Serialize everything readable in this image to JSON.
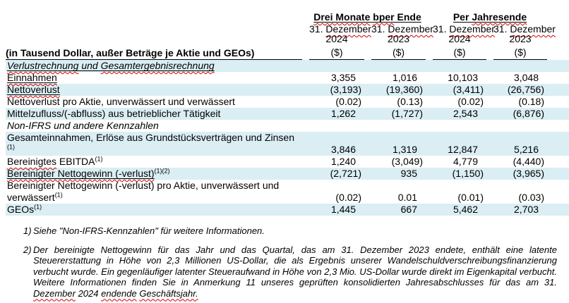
{
  "colors": {
    "row_highlight": "#DAEEF3",
    "rule": "#000000",
    "spellcheck_red": "#D40000",
    "text": "#000000"
  },
  "header": {
    "label": "(in Tausend Dollar, außer Beträge je Aktie und GEOs)",
    "groups": [
      {
        "id": "drei-monate",
        "parts": [
          {
            "t": "Drei Monate",
            "sp": true
          },
          {
            "t": " "
          },
          {
            "t": "bper",
            "sp": true
          },
          {
            "t": " Ende"
          }
        ]
      },
      {
        "id": "per-jahresende",
        "parts": [
          {
            "t": "Per "
          },
          {
            "t": "Jahresende",
            "sp": true
          }
        ]
      }
    ],
    "columns": [
      {
        "date_parts": [
          {
            "t": "31. "
          },
          {
            "t": "Dezember",
            "sp": true
          }
        ],
        "year": "2024",
        "unit": "($)"
      },
      {
        "date_parts": [
          {
            "t": "31. "
          },
          {
            "t": "Dezember",
            "sp": true
          }
        ],
        "year": "2023",
        "unit": "($)"
      },
      {
        "date_parts": [
          {
            "t": "31. "
          },
          {
            "t": "Dezember",
            "sp": true
          }
        ],
        "year": "2024",
        "unit": "($)"
      },
      {
        "date_parts": [
          {
            "t": "31. "
          },
          {
            "t": "Dezember",
            "sp": true
          }
        ],
        "year": "2023",
        "unit": "($)"
      }
    ]
  },
  "rows": [
    {
      "kind": "section",
      "bg": "blue",
      "italic": true,
      "parts": [
        {
          "t": "Verlustrechnung",
          "u": true,
          "sp": true
        },
        {
          "t": " und ",
          "u": true
        },
        {
          "t": "Gesamtergebnisrechnung",
          "u": true,
          "sp": true
        }
      ],
      "values": []
    },
    {
      "kind": "data",
      "bg": "white",
      "parts": [
        {
          "t": "Einnahmen",
          "u": true,
          "sp": true
        }
      ],
      "values": [
        "3,355",
        "1,016",
        "10,103",
        "3,048"
      ]
    },
    {
      "kind": "data",
      "bg": "blue",
      "parts": [
        {
          "t": "Nettoverlust",
          "u": true,
          "sp": true
        }
      ],
      "values": [
        "(3,193)",
        "(19,360)",
        "(3,411)",
        "(26,756)"
      ]
    },
    {
      "kind": "data",
      "bg": "white",
      "parts": [
        {
          "t": "Nettoverlust pro Aktie, unverwässert und verwässert"
        }
      ],
      "values": [
        "(0.02)",
        "(0.13)",
        "(0.02)",
        "(0.18)"
      ]
    },
    {
      "kind": "data",
      "bg": "blue",
      "parts": [
        {
          "t": "Mittelzufluss/(-abfluss) aus betrieblicher Tätigkeit"
        }
      ],
      "values": [
        "1,262",
        "(1,727)",
        "2,543",
        "(6,876)"
      ]
    },
    {
      "kind": "section",
      "bg": "white",
      "italic": true,
      "parts": [
        {
          "t": "Non-IFRS und andere Kennzahlen"
        }
      ],
      "values": []
    },
    {
      "kind": "data",
      "bg": "blue",
      "parts": [
        {
          "t": "Gesamteinnahmen, Erlöse aus Grundstücksverträgen und Zinsen "
        },
        {
          "t": "(1)",
          "sup": true
        }
      ],
      "values": [
        "3,846",
        "1,319",
        "12,847",
        "5,216"
      ]
    },
    {
      "kind": "data",
      "bg": "white",
      "parts": [
        {
          "t": "Bereinigtes",
          "sp": true
        },
        {
          "t": " EBITDA"
        },
        {
          "t": "(1)",
          "sup": true
        }
      ],
      "values": [
        "1,240",
        "(3,049)",
        "4,779",
        "(4,440)"
      ]
    },
    {
      "kind": "data",
      "bg": "blue",
      "parts": [
        {
          "t": "Bereinigter Nettogewinn (-verlust)",
          "u": true,
          "sp": true
        },
        {
          "t": "(1)(2)",
          "sup": true
        }
      ],
      "values": [
        "(2,721)",
        "935",
        "(1,150)",
        "(3,965)"
      ]
    },
    {
      "kind": "data",
      "bg": "white",
      "parts": [
        {
          "t": "Bereinigter Nettogewinn (-verlust) pro Aktie, unverwässert und verwässert"
        },
        {
          "t": "(1)",
          "sup": true
        }
      ],
      "values": [
        "(0.02)",
        "0.01",
        "(0.01)",
        "(0.03)"
      ]
    },
    {
      "kind": "data",
      "bg": "blue",
      "parts": [
        {
          "t": "GEOs"
        },
        {
          "t": "(1)",
          "sup": true
        }
      ],
      "values": [
        "1,445",
        "667",
        "5,462",
        "2,703"
      ]
    }
  ],
  "footnotes": [
    {
      "marker": "1)",
      "justify": false,
      "parts": [
        {
          "t": "Siehe \"Non-IFRS-Kennzahlen\" für weitere Informationen."
        }
      ]
    },
    {
      "marker": "2)",
      "justify": true,
      "parts": [
        {
          "t": "Der bereinigte Nettogewinn für das Jahr und das Quartal, das am 31. Dezember 2023 endete, enthält eine latente Steuererstattung in Höhe von 2,3 Millionen US-Dollar, die als Ergebnis unserer Wandelschuldverschreibungsfinanzierung verbucht wurde. Ein gegenläufiger latenter Steueraufwand in Höhe von 2,3 Mio. US-Dollar wurde direkt im Eigenkapital verbucht. Weitere Informationen finden Sie in Anmerkung 11 unseres geprüften konsolidierten Jahresabschlusses für das am 31. "
        },
        {
          "t": "Dezember",
          "sp": true
        },
        {
          "t": " 2024 "
        },
        {
          "t": "endende",
          "sp": true
        },
        {
          "t": " "
        },
        {
          "t": "Geschäftsjahr.",
          "sp": true
        }
      ]
    }
  ]
}
